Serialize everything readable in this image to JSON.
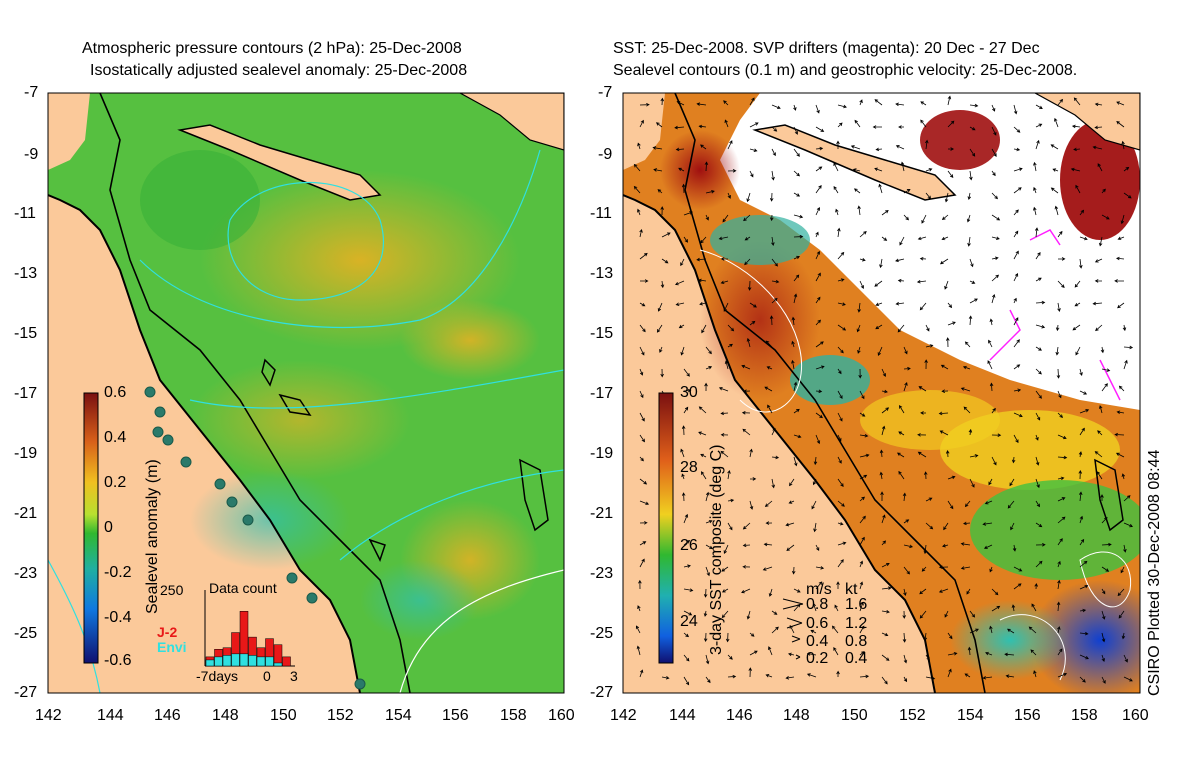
{
  "left_panel": {
    "title_line1": "Atmospheric pressure contours (2 hPa): 25-Dec-2008",
    "title_line2": "Isostatically adjusted sealevel anomaly: 25-Dec-2008",
    "colorbar": {
      "label": "Sealevel anomaly (m)",
      "ticks": [
        "0.6",
        "0.4",
        "0.2",
        "0",
        "-0.2",
        "-0.4",
        "-0.6"
      ]
    },
    "inset": {
      "title": "Data count",
      "y_tick": "250",
      "x_ticks": [
        "-7days",
        "0",
        "3"
      ],
      "legend": [
        {
          "label": "J-2",
          "color": "#e81818"
        },
        {
          "label": "Envi",
          "color": "#30e0e0"
        }
      ],
      "bars_j2": [
        30,
        55,
        60,
        110,
        180,
        95,
        60,
        90,
        70,
        30
      ],
      "bars_envi": [
        20,
        30,
        35,
        40,
        40,
        35,
        30,
        30,
        10,
        0
      ]
    }
  },
  "right_panel": {
    "title_line1": "SST: 25-Dec-2008. SVP drifters (magenta): 20 Dec - 27 Dec",
    "title_line2": "Sealevel contours (0.1 m) and geostrophic velocity: 25-Dec-2008.",
    "colorbar": {
      "label": "3-day SST composite (deg C)",
      "ticks": [
        "30",
        "28",
        "26",
        "24"
      ]
    },
    "velocity_key": {
      "header_ms": "m/s",
      "header_kt": "kt",
      "rows": [
        {
          "ms": "0.8",
          "kt": "1.6"
        },
        {
          "ms": "0.6",
          "kt": "1.2"
        },
        {
          "ms": "0.4",
          "kt": "0.8"
        },
        {
          "ms": "0.2",
          "kt": "0.4"
        }
      ]
    }
  },
  "axes": {
    "lat_ticks": [
      "-7",
      "-9",
      "-11",
      "-13",
      "-15",
      "-17",
      "-19",
      "-21",
      "-23",
      "-25",
      "-27"
    ],
    "lon_ticks": [
      "142",
      "144",
      "146",
      "148",
      "150",
      "152",
      "154",
      "156",
      "158",
      "160"
    ]
  },
  "credit": "CSIRO Plotted 30-Dec-2008 08:44",
  "colors": {
    "land": "#fbc99a",
    "coast": "#000000",
    "pressure_contour": "#30e0e0"
  }
}
